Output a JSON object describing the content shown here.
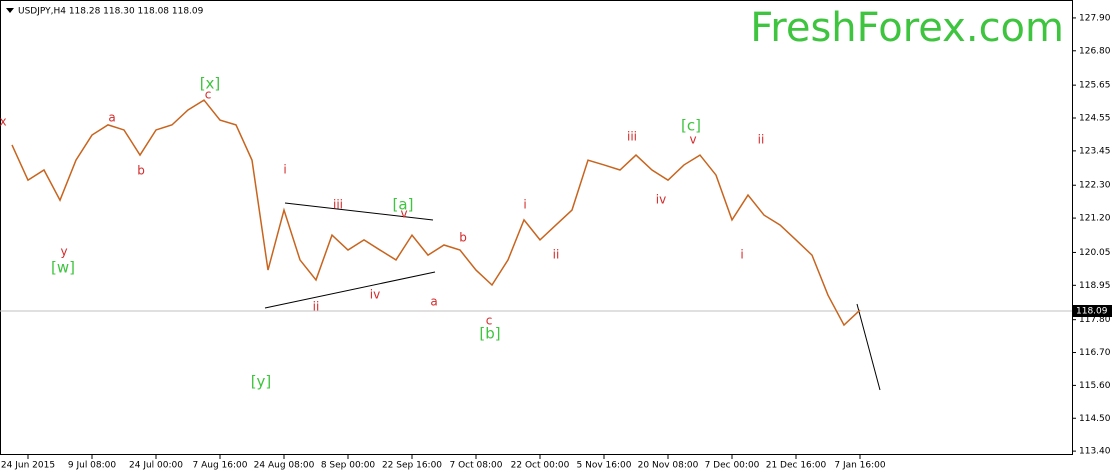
{
  "chart_data": {
    "type": "line",
    "title": "USDJPY,H4  118.28 118.30 118.08 118.09",
    "logo": "FreshForex.com",
    "categories": [
      null,
      "24 Jun 2015",
      null,
      null,
      null,
      "9 Jul 08:00",
      null,
      null,
      null,
      "24 Jul 00:00",
      null,
      null,
      null,
      "7 Aug 16:00",
      null,
      null,
      null,
      "24 Aug 08:00",
      null,
      null,
      null,
      "8 Sep 00:00",
      null,
      null,
      null,
      "22 Sep 16:00",
      null,
      null,
      null,
      "7 Oct 08:00",
      null,
      null,
      null,
      "22 Oct 00:00",
      null,
      null,
      null,
      "5 Nov 16:00",
      null,
      null,
      null,
      "20 Nov 08:00",
      null,
      null,
      null,
      "7 Dec 00:00",
      null,
      null,
      null,
      "21 Dec 16:00",
      null,
      null,
      null,
      "7 Jan 16:00"
    ],
    "series": [
      {
        "name": "USDJPY",
        "color": "#c8641e",
        "values": [
          123.65,
          122.47,
          122.81,
          121.8,
          123.14,
          123.98,
          124.32,
          124.15,
          123.31,
          124.15,
          124.32,
          124.82,
          125.15,
          124.48,
          124.32,
          123.14,
          119.46,
          121.47,
          119.8,
          119.13,
          120.63,
          120.13,
          120.47,
          120.13,
          119.8,
          120.63,
          119.96,
          120.3,
          120.13,
          119.46,
          118.96,
          119.8,
          121.14,
          120.47,
          120.97,
          121.47,
          123.14,
          122.98,
          122.81,
          123.31,
          122.81,
          122.47,
          122.98,
          123.31,
          122.64,
          121.14,
          121.97,
          121.3,
          120.97,
          120.47,
          119.96,
          118.62,
          117.62,
          118.12
        ]
      }
    ],
    "ylim": [
      113.27,
      128.5
    ],
    "yticks": [
      {
        "value": 127.9,
        "label": "127.90"
      },
      {
        "value": 126.8,
        "label": "126.80"
      },
      125.65,
      124.55,
      123.45,
      {
        "value": 122.3,
        "label": "122.30"
      },
      {
        "value": 121.2,
        "label": "121.20"
      },
      120.05,
      118.95,
      {
        "value": 117.8,
        "label": "117.80"
      },
      {
        "value": 116.7,
        "label": "116.70"
      },
      {
        "value": 115.6,
        "label": "115.60"
      },
      {
        "value": 114.5,
        "label": "114.50"
      },
      {
        "value": 113.4,
        "label": "113.40"
      }
    ],
    "current_price": 118.09,
    "annotations": [
      {
        "text": "x",
        "color": "#d42a2a"
      },
      {
        "text": "a",
        "color": "#d42a2a"
      },
      {
        "text": "b",
        "color": "#d42a2a"
      },
      {
        "text": "y",
        "color": "#d42a2a"
      },
      {
        "text": "[w]",
        "color": "#3ec43e"
      },
      {
        "text": "[x]",
        "color": "#3ec43e"
      },
      {
        "text": "c",
        "color": "#d42a2a"
      },
      {
        "text": "i",
        "color": "#d42a2a"
      },
      {
        "text": "iii",
        "color": "#d42a2a"
      },
      {
        "text": "[a]",
        "color": "#3ec43e"
      },
      {
        "text": "v",
        "color": "#d42a2a"
      },
      {
        "text": "b",
        "color": "#d42a2a"
      },
      {
        "text": "ii",
        "color": "#d42a2a"
      },
      {
        "text": "iv",
        "color": "#d42a2a"
      },
      {
        "text": "a",
        "color": "#d42a2a"
      },
      {
        "text": "c",
        "color": "#d42a2a"
      },
      {
        "text": "[b]",
        "color": "#3ec43e"
      },
      {
        "text": "[y]",
        "color": "#3ec43e"
      },
      {
        "text": "i",
        "color": "#d42a2a"
      },
      {
        "text": "ii",
        "color": "#d42a2a"
      },
      {
        "text": "iii",
        "color": "#d42a2a"
      },
      {
        "text": "iv",
        "color": "#d42a2a"
      },
      {
        "text": "[c]",
        "color": "#3ec43e"
      },
      {
        "text": "v",
        "color": "#d42a2a"
      },
      {
        "text": "ii",
        "color": "#d42a2a"
      },
      {
        "text": "i",
        "color": "#d42a2a"
      }
    ]
  }
}
